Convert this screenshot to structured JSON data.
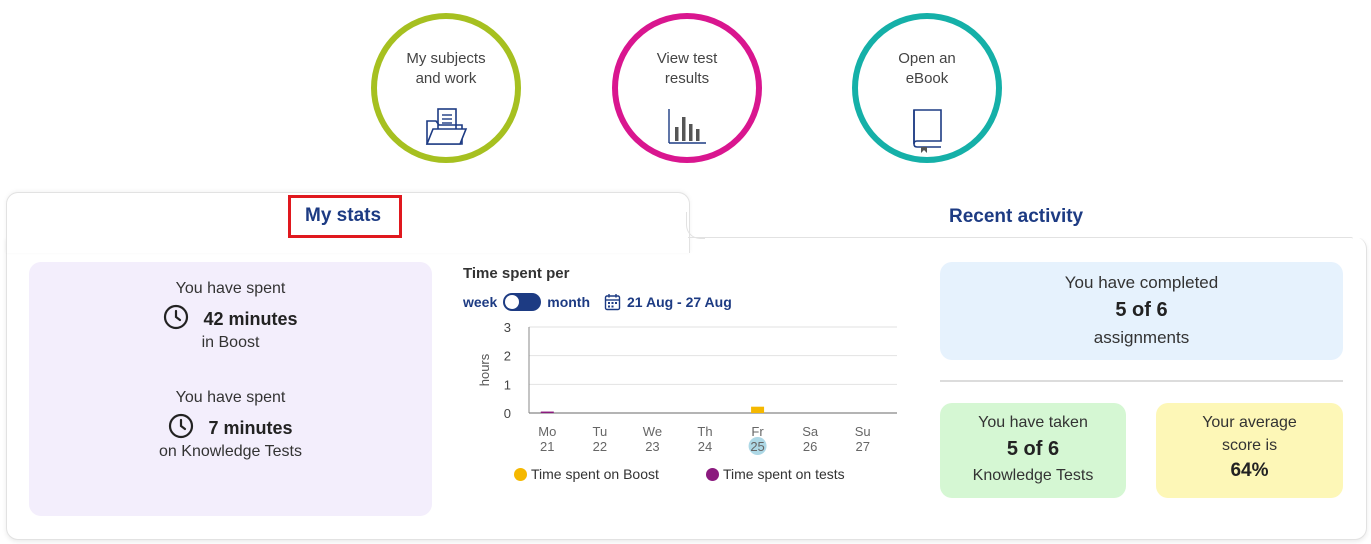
{
  "nav_circles": [
    {
      "label": "My subjects\nand work",
      "icon": "folder-icon",
      "color": "#a6c020"
    },
    {
      "label": "View test\nresults",
      "icon": "bar-chart-icon",
      "color": "#d9168f"
    },
    {
      "label": "Open an\neBook",
      "icon": "book-icon",
      "color": "#15b0a8"
    }
  ],
  "tabs": {
    "stats": "My stats",
    "activity": "Recent activity"
  },
  "stats": {
    "boost_prefix": "You have spent",
    "boost_value": "42 minutes",
    "boost_suffix": "in Boost",
    "tests_prefix": "You have spent",
    "tests_value": "7 minutes",
    "tests_suffix": "on Knowledge Tests"
  },
  "chart_header": {
    "title": "Time spent per",
    "toggle_left": "week",
    "toggle_right": "month",
    "date_range": "21 Aug - 27 Aug"
  },
  "chart_data": {
    "type": "bar",
    "categories": [
      "Mo 21",
      "Tu 22",
      "We 23",
      "Th 24",
      "Fr 25",
      "Sa 26",
      "Su 27"
    ],
    "day_names": [
      "Mo",
      "Tu",
      "We",
      "Th",
      "Fr",
      "Sa",
      "Su"
    ],
    "day_numbers": [
      "21",
      "22",
      "23",
      "24",
      "25",
      "26",
      "27"
    ],
    "highlighted_day": "25",
    "series": [
      {
        "name": "Time spent on Boost",
        "color": "#f5b800",
        "values": [
          0,
          0,
          0,
          0,
          0.22,
          0,
          0
        ]
      },
      {
        "name": "Time spent on tests",
        "color": "#8b1a7e",
        "values": [
          0.05,
          0,
          0,
          0,
          0,
          0,
          0
        ]
      }
    ],
    "ylabel": "hours",
    "yticks": [
      "0",
      "1",
      "2",
      "3"
    ],
    "ylim": [
      0,
      3
    ],
    "grid": true
  },
  "summary": {
    "completed_prefix": "You have completed",
    "completed_value": "5 of 6",
    "completed_suffix": "assignments",
    "taken_prefix": "You have taken",
    "taken_value": "5 of 6",
    "taken_suffix": "Knowledge Tests",
    "avg_prefix": "Your average",
    "avg_mid": "score is",
    "avg_value": "64%"
  },
  "colors": {
    "brand_navy": "#1d3b83",
    "highlight_red": "#e0181e"
  }
}
